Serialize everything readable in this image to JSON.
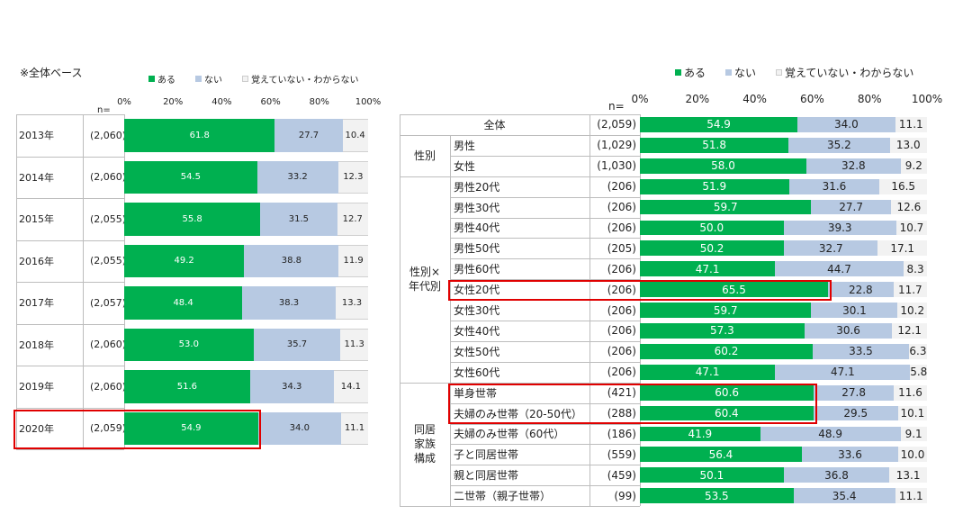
{
  "left": {
    "note": "※全体ベース",
    "legend": [
      "ある",
      "ない",
      "覚えていない・わからない"
    ],
    "n_label": "n=",
    "ticks": [
      "0%",
      "20%",
      "40%",
      "60%",
      "80%",
      "100%"
    ],
    "highlight": "2020年"
  },
  "right": {
    "legend": [
      "ある",
      "ない",
      "覚えていない・わからない"
    ],
    "n_label": "n=",
    "ticks": [
      "0%",
      "20%",
      "40%",
      "60%",
      "80%",
      "100%"
    ],
    "groups": [
      {
        "label": "",
        "rows": 1
      },
      {
        "label": "性別",
        "rows": 2
      },
      {
        "label": "性別×\n年代別",
        "rows": 10
      },
      {
        "label": "同居\n家族\n構成",
        "rows": 6
      }
    ],
    "highlights": [
      [
        "女性20代"
      ],
      [
        "単身世帯",
        "夫婦のみ世帯（20-50代）"
      ]
    ]
  },
  "colors": {
    "aru": "#00b050",
    "nai": "#b7c9e2",
    "wakaranai": "#f2f2f2",
    "highlight": "#e00000",
    "grid": "#bdbdbd"
  },
  "chart_data": [
    {
      "type": "bar",
      "stacked": true,
      "orientation": "horizontal",
      "categories": [
        "2013年",
        "2014年",
        "2015年",
        "2016年",
        "2017年",
        "2018年",
        "2019年",
        "2020年"
      ],
      "n": [
        "(2,060)",
        "(2,060)",
        "(2,055)",
        "(2,055)",
        "(2,057)",
        "(2,060)",
        "(2,060)",
        "(2,059)"
      ],
      "series": [
        {
          "name": "ある",
          "values": [
            61.8,
            54.5,
            55.8,
            49.2,
            48.4,
            53.0,
            51.6,
            54.9
          ]
        },
        {
          "name": "ない",
          "values": [
            27.7,
            33.2,
            31.5,
            38.8,
            38.3,
            35.7,
            34.3,
            34.0
          ]
        },
        {
          "name": "覚えていない・わからない",
          "values": [
            10.4,
            12.3,
            12.7,
            11.9,
            13.3,
            11.3,
            14.1,
            11.1
          ]
        }
      ],
      "xlim": [
        0,
        100
      ]
    },
    {
      "type": "bar",
      "stacked": true,
      "orientation": "horizontal",
      "categories": [
        "全体",
        "男性",
        "女性",
        "男性20代",
        "男性30代",
        "男性40代",
        "男性50代",
        "男性60代",
        "女性20代",
        "女性30代",
        "女性40代",
        "女性50代",
        "女性60代",
        "単身世帯",
        "夫婦のみ世帯（20-50代）",
        "夫婦のみ世帯（60代）",
        "子と同居世帯",
        "親と同居世帯",
        "二世帯（親子世帯）"
      ],
      "n": [
        "(2,059)",
        "(1,029)",
        "(1,030)",
        "(206)",
        "(206)",
        "(206)",
        "(205)",
        "(206)",
        "(206)",
        "(206)",
        "(206)",
        "(206)",
        "(206)",
        "(421)",
        "(288)",
        "(186)",
        "(559)",
        "(459)",
        "(99)"
      ],
      "series": [
        {
          "name": "ある",
          "values": [
            54.9,
            51.8,
            58.0,
            51.9,
            59.7,
            50.0,
            50.2,
            47.1,
            65.5,
            59.7,
            57.3,
            60.2,
            47.1,
            60.6,
            60.4,
            41.9,
            56.4,
            50.1,
            53.5
          ]
        },
        {
          "name": "ない",
          "values": [
            34.0,
            35.2,
            32.8,
            31.6,
            27.7,
            39.3,
            32.7,
            44.7,
            22.8,
            30.1,
            30.6,
            33.5,
            47.1,
            27.8,
            29.5,
            48.9,
            33.6,
            36.8,
            35.4
          ]
        },
        {
          "name": "覚えていない・わからない",
          "values": [
            11.1,
            13.0,
            9.2,
            16.5,
            12.6,
            10.7,
            17.1,
            8.3,
            11.7,
            10.2,
            12.1,
            6.3,
            5.8,
            11.6,
            10.1,
            9.1,
            10.0,
            13.1,
            11.1
          ]
        }
      ],
      "xlim": [
        0,
        100
      ]
    }
  ]
}
